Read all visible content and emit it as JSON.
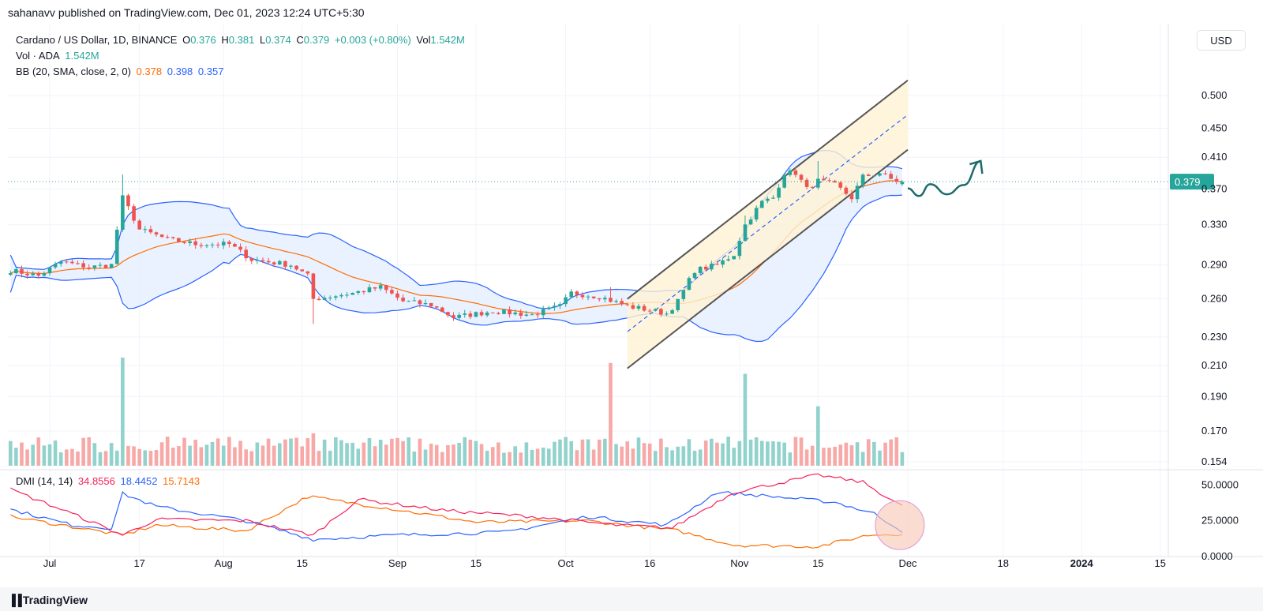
{
  "header": {
    "published": "sahanavv published on TradingView.com, Dec 01, 2023 12:24 UTC+5:30"
  },
  "legend": {
    "symbol": "Cardano / US Dollar, 1D, BINANCE",
    "o_label": "O",
    "o": "0.376",
    "h_label": "H",
    "h": "0.381",
    "l_label": "L",
    "l": "0.374",
    "c_label": "C",
    "c": "0.379",
    "change": "+0.003 (+0.80%)",
    "vol_label": "Vol",
    "vol": "1.542M",
    "vol_line_label": "Vol · ADA",
    "vol_line_value": "1.542M",
    "bb_label": "BB (20, SMA, close, 2, 0)",
    "bb_basis": "0.378",
    "bb_upper": "0.398",
    "bb_lower": "0.357",
    "dmi_label": "DMI (14, 14)",
    "dmi_adx": "34.8556",
    "dmi_plus": "18.4452",
    "dmi_minus": "15.7143"
  },
  "currency_button": "USD",
  "footer": {
    "brand": "TradingView"
  },
  "colors": {
    "up": "#26a69a",
    "down": "#ef5350",
    "vol_up": "#92d2cc",
    "vol_down": "#f7a9a7",
    "bb_band": "#2962ff",
    "bb_basis": "#ff6d00",
    "bb_fill": "#e3ecff",
    "adx": "#f7235c",
    "plus_di": "#2962ff",
    "minus_di": "#ff6d00",
    "channel_fill": "#fff3d4",
    "channel_line": "#555555",
    "forecast_arrow": "#1f6b6b",
    "price_tag": "#26a69a"
  },
  "chart_data": {
    "type": "candlestick",
    "symbol": "ADAUSD",
    "interval": "1D",
    "price_axis": {
      "scale": "log",
      "ticks": [
        "0.500",
        "0.450",
        "0.410",
        "0.370",
        "0.330",
        "0.290",
        "0.260",
        "0.230",
        "0.210",
        "0.190",
        "0.170",
        "0.154"
      ],
      "last_price": "0.379"
    },
    "time_axis": {
      "ticks": [
        {
          "label": "Jul",
          "date": "2023-07-01"
        },
        {
          "label": "17",
          "date": "2023-07-17"
        },
        {
          "label": "Aug",
          "date": "2023-08-01"
        },
        {
          "label": "15",
          "date": "2023-08-15"
        },
        {
          "label": "Sep",
          "date": "2023-09-01"
        },
        {
          "label": "15",
          "date": "2023-09-15"
        },
        {
          "label": "Oct",
          "date": "2023-10-01"
        },
        {
          "label": "16",
          "date": "2023-10-16"
        },
        {
          "label": "Nov",
          "date": "2023-11-01"
        },
        {
          "label": "15",
          "date": "2023-11-15"
        },
        {
          "label": "Dec",
          "date": "2023-12-01"
        },
        {
          "label": "18",
          "date": "2023-12-18"
        },
        {
          "label": "2024",
          "date": "2024-01-01"
        },
        {
          "label": "15",
          "date": "2024-01-15"
        }
      ]
    },
    "dmi_axis": {
      "ticks": [
        "50.0000",
        "25.0000",
        "0.0000"
      ],
      "range": [
        0,
        58
      ]
    },
    "anchors": [
      {
        "date": "2023-06-24",
        "close": 0.285
      },
      {
        "date": "2023-06-29",
        "close": 0.28
      },
      {
        "date": "2023-07-03",
        "close": 0.293
      },
      {
        "date": "2023-07-08",
        "close": 0.288
      },
      {
        "date": "2023-07-12",
        "close": 0.29
      },
      {
        "date": "2023-07-14",
        "close": 0.36
      },
      {
        "date": "2023-07-17",
        "close": 0.325
      },
      {
        "date": "2023-07-22",
        "close": 0.315
      },
      {
        "date": "2023-07-27",
        "close": 0.31
      },
      {
        "date": "2023-08-02",
        "close": 0.31
      },
      {
        "date": "2023-08-06",
        "close": 0.295
      },
      {
        "date": "2023-08-13",
        "close": 0.29
      },
      {
        "date": "2023-08-16",
        "close": 0.28
      },
      {
        "date": "2023-08-17",
        "close": 0.26
      },
      {
        "date": "2023-08-24",
        "close": 0.265
      },
      {
        "date": "2023-08-29",
        "close": 0.27
      },
      {
        "date": "2023-09-02",
        "close": 0.258
      },
      {
        "date": "2023-09-07",
        "close": 0.255
      },
      {
        "date": "2023-09-11",
        "close": 0.245
      },
      {
        "date": "2023-09-18",
        "close": 0.25
      },
      {
        "date": "2023-09-25",
        "close": 0.247
      },
      {
        "date": "2023-09-30",
        "close": 0.254
      },
      {
        "date": "2023-10-02",
        "close": 0.265
      },
      {
        "date": "2023-10-07",
        "close": 0.262
      },
      {
        "date": "2023-10-12",
        "close": 0.254
      },
      {
        "date": "2023-10-17",
        "close": 0.25
      },
      {
        "date": "2023-10-19",
        "close": 0.248
      },
      {
        "date": "2023-10-21",
        "close": 0.258
      },
      {
        "date": "2023-10-24",
        "close": 0.285
      },
      {
        "date": "2023-10-28",
        "close": 0.29
      },
      {
        "date": "2023-10-31",
        "close": 0.3
      },
      {
        "date": "2023-11-02",
        "close": 0.33
      },
      {
        "date": "2023-11-05",
        "close": 0.355
      },
      {
        "date": "2023-11-07",
        "close": 0.36
      },
      {
        "date": "2023-11-09",
        "close": 0.39
      },
      {
        "date": "2023-11-11",
        "close": 0.39
      },
      {
        "date": "2023-11-13",
        "close": 0.37
      },
      {
        "date": "2023-11-15",
        "close": 0.38
      },
      {
        "date": "2023-11-18",
        "close": 0.375
      },
      {
        "date": "2023-11-21",
        "close": 0.36
      },
      {
        "date": "2023-11-23",
        "close": 0.385
      },
      {
        "date": "2023-11-26",
        "close": 0.39
      },
      {
        "date": "2023-11-28",
        "close": 0.382
      },
      {
        "date": "2023-11-30",
        "close": 0.379
      }
    ],
    "spikes": [
      {
        "date": "2023-07-14",
        "high": 0.388,
        "volume_rel": 1.0
      },
      {
        "date": "2023-08-17",
        "low": 0.24,
        "volume_rel": 0.3
      },
      {
        "date": "2023-10-09",
        "high": 0.27,
        "volume_rel": 0.95
      },
      {
        "date": "2023-11-02",
        "high": 0.34,
        "volume_rel": 0.85
      },
      {
        "date": "2023-11-15",
        "high": 0.405,
        "volume_rel": 0.55
      }
    ],
    "bollinger_bands": {
      "period": 20,
      "stdev": 2,
      "last": {
        "basis": 0.378,
        "upper": 0.398,
        "lower": 0.357
      }
    },
    "dmi": {
      "period": 14,
      "last": {
        "adx": 34.8556,
        "plus_di": 18.4452,
        "minus_di": 15.7143
      },
      "adx_path": [
        {
          "date": "2023-06-24",
          "v": 47
        },
        {
          "date": "2023-07-05",
          "v": 30
        },
        {
          "date": "2023-07-14",
          "v": 15
        },
        {
          "date": "2023-07-20",
          "v": 26
        },
        {
          "date": "2023-08-05",
          "v": 25
        },
        {
          "date": "2023-08-17",
          "v": 15
        },
        {
          "date": "2023-08-25",
          "v": 40
        },
        {
          "date": "2023-09-10",
          "v": 32
        },
        {
          "date": "2023-09-25",
          "v": 28
        },
        {
          "date": "2023-10-10",
          "v": 22
        },
        {
          "date": "2023-10-20",
          "v": 20
        },
        {
          "date": "2023-10-31",
          "v": 45
        },
        {
          "date": "2023-11-15",
          "v": 57
        },
        {
          "date": "2023-11-23",
          "v": 52
        },
        {
          "date": "2023-11-30",
          "v": 35
        }
      ],
      "plus_di_path": [
        {
          "date": "2023-06-24",
          "v": 33
        },
        {
          "date": "2023-07-05",
          "v": 22
        },
        {
          "date": "2023-07-12",
          "v": 20
        },
        {
          "date": "2023-07-14",
          "v": 44
        },
        {
          "date": "2023-07-20",
          "v": 35
        },
        {
          "date": "2023-08-05",
          "v": 25
        },
        {
          "date": "2023-08-17",
          "v": 12
        },
        {
          "date": "2023-09-01",
          "v": 15
        },
        {
          "date": "2023-09-20",
          "v": 17
        },
        {
          "date": "2023-10-05",
          "v": 28
        },
        {
          "date": "2023-10-19",
          "v": 22
        },
        {
          "date": "2023-10-28",
          "v": 45
        },
        {
          "date": "2023-11-07",
          "v": 42
        },
        {
          "date": "2023-11-18",
          "v": 38
        },
        {
          "date": "2023-11-25",
          "v": 30
        },
        {
          "date": "2023-11-30",
          "v": 18
        }
      ],
      "minus_di_path": [
        {
          "date": "2023-06-24",
          "v": 28
        },
        {
          "date": "2023-07-14",
          "v": 15
        },
        {
          "date": "2023-07-20",
          "v": 22
        },
        {
          "date": "2023-08-05",
          "v": 18
        },
        {
          "date": "2023-08-16",
          "v": 42
        },
        {
          "date": "2023-08-30",
          "v": 34
        },
        {
          "date": "2023-09-15",
          "v": 24
        },
        {
          "date": "2023-10-05",
          "v": 25
        },
        {
          "date": "2023-10-21",
          "v": 18
        },
        {
          "date": "2023-10-31",
          "v": 8
        },
        {
          "date": "2023-11-15",
          "v": 7
        },
        {
          "date": "2023-11-24",
          "v": 15
        },
        {
          "date": "2023-11-30",
          "v": 16
        }
      ]
    },
    "drawings": {
      "ascending_channel": {
        "upper": [
          {
            "date": "2023-10-12",
            "price": 0.26
          },
          {
            "date": "2023-12-01",
            "price": 0.525
          }
        ],
        "lower": [
          {
            "date": "2023-10-12",
            "price": 0.208
          },
          {
            "date": "2023-12-01",
            "price": 0.42
          }
        ],
        "mid": [
          {
            "date": "2023-10-12",
            "price": 0.234
          },
          {
            "date": "2023-12-01",
            "price": 0.47
          }
        ]
      },
      "forecast_path": [
        {
          "date": "2023-12-01",
          "price": 0.371
        },
        {
          "date": "2023-12-03",
          "price": 0.362
        },
        {
          "date": "2023-12-05",
          "price": 0.376
        },
        {
          "date": "2023-12-08",
          "price": 0.364
        },
        {
          "date": "2023-12-11",
          "price": 0.375
        },
        {
          "date": "2023-12-14",
          "price": 0.405
        }
      ],
      "dmi_highlight": {
        "date": "2023-11-30",
        "value": 22
      }
    }
  }
}
